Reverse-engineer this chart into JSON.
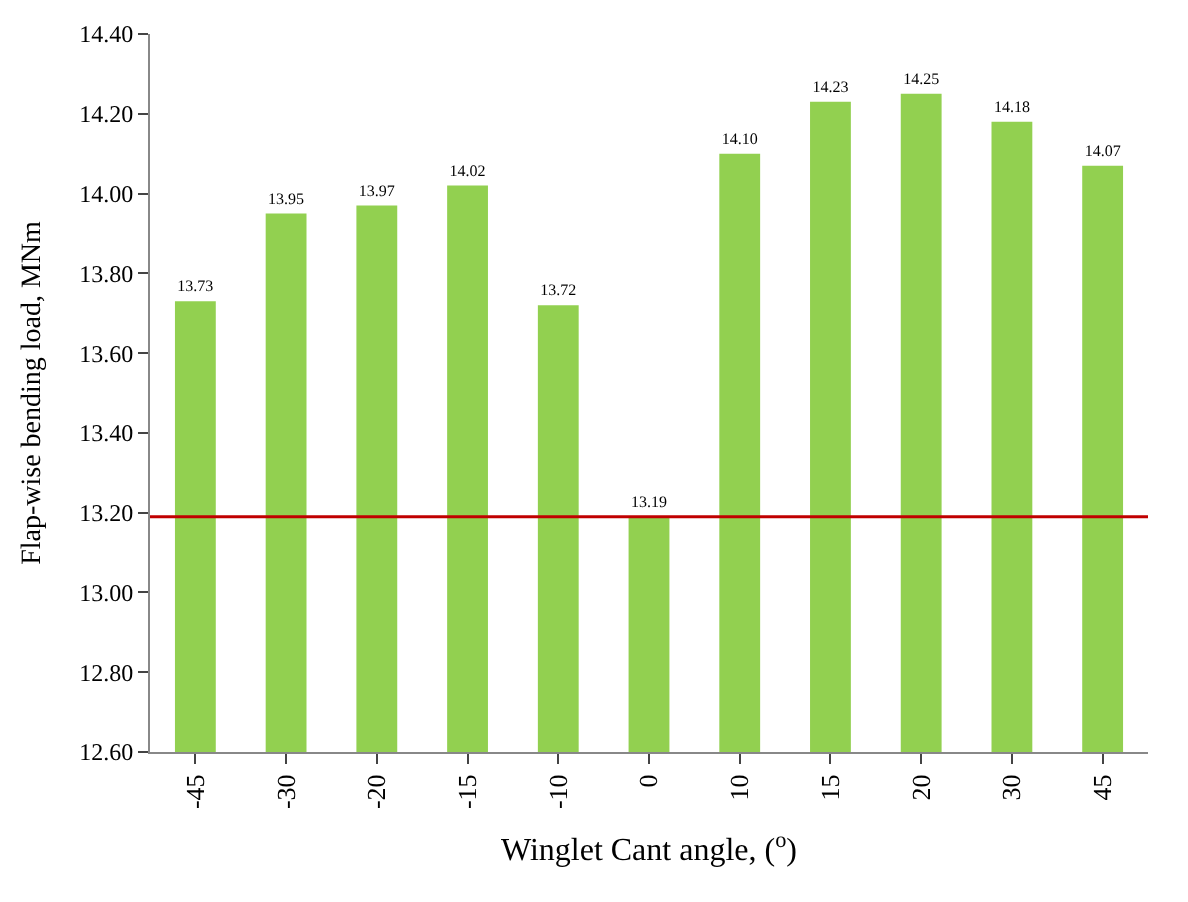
{
  "chart_data": {
    "type": "bar",
    "xlabel": "Winglet Cant angle, ($^{o}$)",
    "ylabel": "Flap-wise bending load, MNm",
    "categories": [
      "-45",
      "-30",
      "-20",
      "-15",
      "-10",
      "0",
      "10",
      "15",
      "20",
      "30",
      "45"
    ],
    "values": [
      13.73,
      13.95,
      13.97,
      14.02,
      13.72,
      13.19,
      14.1,
      14.23,
      14.25,
      14.18,
      14.07
    ],
    "value_labels": [
      "13.73",
      "13.95",
      "13.97",
      "14.02",
      "13.72",
      "13.19",
      "14.10",
      "14.23",
      "14.25",
      "14.18",
      "14.07"
    ],
    "color": "#92d050",
    "ylim": [
      12.6,
      14.4
    ],
    "yticks": [
      {
        "value": 12.6,
        "label": "12.60"
      },
      {
        "value": 12.8,
        "label": "12.80"
      },
      {
        "value": 13.0,
        "label": "13.00"
      },
      {
        "value": 13.2,
        "label": "13.20"
      },
      {
        "value": 13.4,
        "label": "13.40"
      },
      {
        "value": 13.6,
        "label": "13.60"
      },
      {
        "value": 13.8,
        "label": "13.80"
      },
      {
        "value": 14.0,
        "label": "14.00"
      },
      {
        "value": 14.2,
        "label": "14.20"
      },
      {
        "value": 14.4,
        "label": "14.40"
      }
    ],
    "ref_lines": [
      {
        "axis": "y",
        "value": 13.19,
        "color": "#c00000"
      }
    ]
  }
}
